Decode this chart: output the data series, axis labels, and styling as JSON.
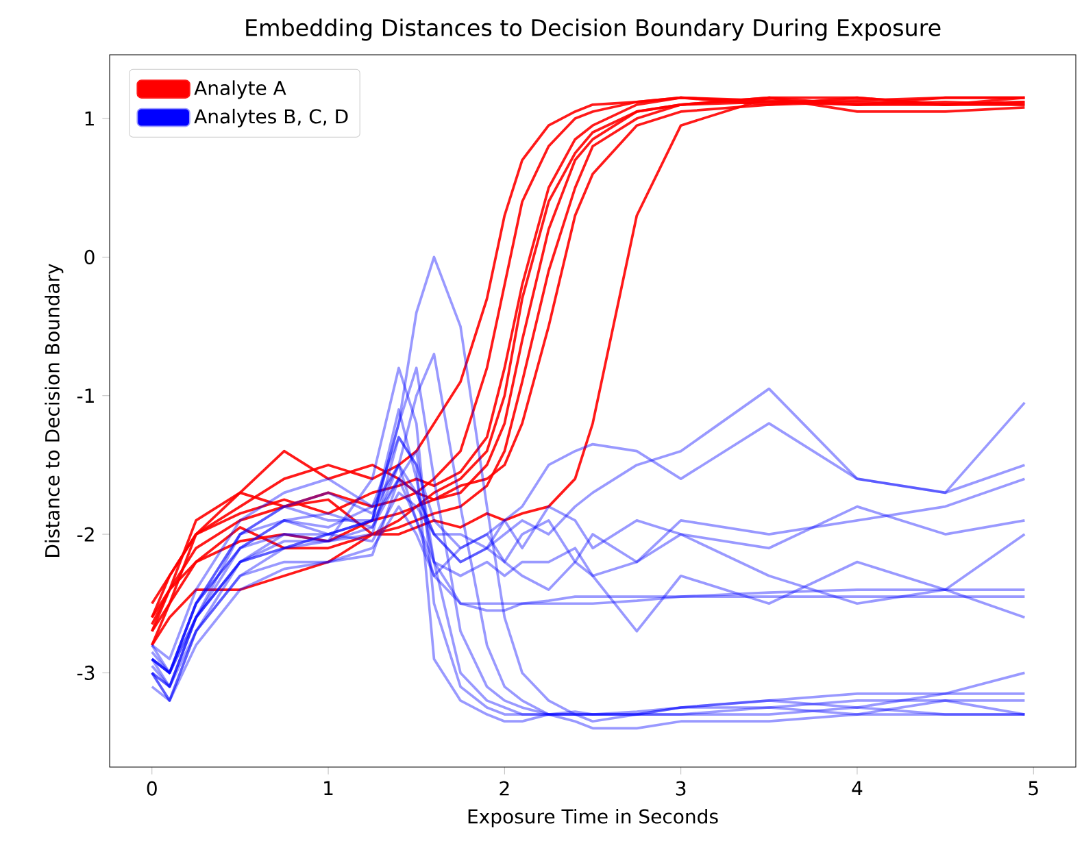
{
  "chart_data": {
    "type": "line",
    "title": "Embedding Distances to Decision Boundary During Exposure",
    "xlabel": "Exposure Time in Seconds",
    "ylabel": "Distance to Decision Boundary",
    "x": [
      0,
      0.1,
      0.25,
      0.5,
      0.75,
      1.0,
      1.25,
      1.4,
      1.5,
      1.6,
      1.75,
      1.9,
      2.0,
      2.1,
      2.25,
      2.4,
      2.5,
      2.75,
      3.0,
      3.5,
      4.0,
      4.5,
      4.95
    ],
    "xlim": [
      -0.24,
      5.24
    ],
    "ylim": [
      -3.68,
      1.46
    ],
    "xticks": [
      0,
      1,
      2,
      3,
      4,
      5
    ],
    "yticks": [
      -3,
      -2,
      -1,
      0,
      1
    ],
    "legend": "top left",
    "grid": false,
    "marker": "none",
    "line_style": "solid",
    "series": [
      {
        "name": "Analyte A",
        "color": "#ff0000",
        "values": [
          -2.6,
          -2.3,
          -2.0,
          -1.8,
          -1.6,
          -1.5,
          -1.6,
          -1.5,
          -1.4,
          -1.2,
          -0.9,
          -0.3,
          0.3,
          0.7,
          0.95,
          1.05,
          1.1,
          1.12,
          1.15,
          1.12,
          1.1,
          1.12,
          1.1
        ]
      },
      {
        "color": "#ff0000",
        "values": [
          -2.7,
          -2.4,
          -2.1,
          -1.9,
          -1.8,
          -1.7,
          -1.8,
          -1.75,
          -1.7,
          -1.6,
          -1.4,
          -0.8,
          -0.2,
          0.4,
          0.8,
          1.0,
          1.05,
          1.12,
          1.15,
          1.13,
          1.1,
          1.15,
          1.15
        ]
      },
      {
        "color": "#ff0000",
        "values": [
          -2.8,
          -2.5,
          -2.0,
          -1.85,
          -1.75,
          -1.85,
          -1.7,
          -1.65,
          -1.6,
          -1.65,
          -1.55,
          -1.3,
          -0.8,
          -0.2,
          0.5,
          0.85,
          0.95,
          1.1,
          1.15,
          1.1,
          1.12,
          1.1,
          1.12
        ]
      },
      {
        "color": "#ff0000",
        "values": [
          -2.6,
          -2.4,
          -2.2,
          -2.05,
          -2.0,
          -2.05,
          -1.9,
          -1.85,
          -1.8,
          -1.75,
          -1.7,
          -1.5,
          -1.2,
          -0.6,
          0.2,
          0.7,
          0.85,
          1.05,
          1.1,
          1.15,
          1.05,
          1.05,
          1.08
        ]
      },
      {
        "color": "#ff0000",
        "values": [
          -2.7,
          -2.5,
          -2.2,
          -1.95,
          -2.1,
          -2.1,
          -2.0,
          -1.95,
          -1.9,
          -1.85,
          -1.8,
          -1.65,
          -1.4,
          -0.9,
          -0.1,
          0.5,
          0.8,
          1.0,
          1.1,
          1.12,
          1.13,
          1.15,
          1.15
        ]
      },
      {
        "color": "#ff0000",
        "values": [
          -2.5,
          -2.3,
          -2.0,
          -1.7,
          -1.4,
          -1.6,
          -1.5,
          -1.6,
          -1.7,
          -1.75,
          -1.65,
          -1.6,
          -1.5,
          -1.2,
          -0.5,
          0.3,
          0.6,
          0.95,
          1.05,
          1.1,
          1.15,
          1.1,
          1.12
        ]
      },
      {
        "color": "#ff0000",
        "values": [
          -2.8,
          -2.6,
          -2.4,
          -2.4,
          -2.3,
          -2.2,
          -2.0,
          -2.0,
          -1.95,
          -1.9,
          -1.95,
          -1.85,
          -1.9,
          -1.85,
          -1.8,
          -1.6,
          -1.2,
          0.3,
          0.95,
          1.15,
          1.15,
          1.1,
          1.15
        ]
      },
      {
        "color": "#ff0000",
        "values": [
          -2.65,
          -2.4,
          -1.9,
          -1.7,
          -1.8,
          -1.75,
          -2.0,
          -1.9,
          -1.8,
          -1.7,
          -1.6,
          -1.4,
          -1.0,
          -0.3,
          0.4,
          0.75,
          0.9,
          1.05,
          1.1,
          1.15,
          1.1,
          1.1,
          1.1
        ]
      },
      {
        "name": "Analytes B, C, D",
        "color": "#0000ff",
        "values": [
          -2.9,
          -3.1,
          -2.6,
          -2.2,
          -2.0,
          -2.05,
          -1.6,
          -0.8,
          -1.2,
          -2.5,
          -3.1,
          -3.25,
          -3.3,
          -3.3,
          -3.3,
          -3.3,
          -3.3,
          -3.28,
          -3.25,
          -3.25,
          -3.2,
          -3.2,
          -3.2
        ]
      },
      {
        "color": "#0000ff",
        "values": [
          -3.0,
          -3.2,
          -2.7,
          -2.3,
          -2.1,
          -2.0,
          -1.9,
          -1.2,
          -0.8,
          -1.6,
          -2.7,
          -3.1,
          -3.2,
          -3.25,
          -3.3,
          -3.28,
          -3.3,
          -3.3,
          -3.25,
          -3.2,
          -3.25,
          -3.15,
          -3.15
        ]
      },
      {
        "color": "#0000ff",
        "values": [
          -2.8,
          -3.0,
          -2.5,
          -2.1,
          -1.9,
          -1.95,
          -1.8,
          -1.5,
          -1.0,
          -0.7,
          -1.8,
          -2.8,
          -3.1,
          -3.2,
          -3.3,
          -3.3,
          -3.3,
          -3.3,
          -3.3,
          -3.3,
          -3.25,
          -3.3,
          -3.3
        ]
      },
      {
        "color": "#0000ff",
        "values": [
          -2.95,
          -3.1,
          -2.6,
          -2.2,
          -2.1,
          -2.05,
          -2.0,
          -1.3,
          -1.5,
          -2.9,
          -3.2,
          -3.3,
          -3.35,
          -3.35,
          -3.3,
          -3.3,
          -3.35,
          -3.3,
          -3.3,
          -3.25,
          -3.3,
          -3.2,
          -3.3
        ]
      },
      {
        "color": "#0000ff",
        "values": [
          -2.9,
          -3.0,
          -2.5,
          -2.0,
          -1.8,
          -1.9,
          -1.9,
          -1.2,
          -0.4,
          0.0,
          -0.5,
          -1.8,
          -2.6,
          -3.0,
          -3.2,
          -3.3,
          -3.3,
          -3.3,
          -3.25,
          -3.2,
          -3.15,
          -3.15,
          -3.0
        ]
      },
      {
        "color": "#0000ff",
        "values": [
          -3.1,
          -3.2,
          -2.8,
          -2.4,
          -2.25,
          -2.2,
          -2.15,
          -1.6,
          -1.4,
          -2.2,
          -3.0,
          -3.2,
          -3.25,
          -3.3,
          -3.3,
          -3.35,
          -3.4,
          -3.4,
          -3.35,
          -3.35,
          -3.3,
          -3.3,
          -3.3
        ]
      },
      {
        "color": "#0000ff",
        "values": [
          -2.9,
          -3.0,
          -2.6,
          -2.1,
          -1.9,
          -2.0,
          -1.9,
          -1.1,
          -1.6,
          -2.2,
          -2.5,
          -2.5,
          -2.5,
          -2.5,
          -2.48,
          -2.45,
          -2.45,
          -2.45,
          -2.45,
          -2.45,
          -2.45,
          -2.45,
          -2.45
        ]
      },
      {
        "color": "#0000ff",
        "values": [
          -3.0,
          -3.1,
          -2.7,
          -2.2,
          -2.05,
          -2.05,
          -1.95,
          -1.5,
          -1.9,
          -2.3,
          -2.5,
          -2.55,
          -2.55,
          -2.5,
          -2.5,
          -2.5,
          -2.5,
          -2.48,
          -2.45,
          -2.42,
          -2.4,
          -2.4,
          -2.4
        ]
      },
      {
        "color": "#0000ff",
        "values": [
          -2.8,
          -2.9,
          -2.4,
          -1.9,
          -1.7,
          -1.6,
          -1.8,
          -1.3,
          -1.5,
          -1.9,
          -2.1,
          -2.0,
          -1.9,
          -1.8,
          -1.5,
          -1.4,
          -1.35,
          -1.4,
          -1.6,
          -1.2,
          -1.6,
          -1.7,
          -1.05
        ]
      },
      {
        "color": "#0000ff",
        "values": [
          -2.9,
          -3.0,
          -2.5,
          -2.0,
          -1.9,
          -1.85,
          -1.95,
          -1.6,
          -1.7,
          -2.0,
          -2.2,
          -2.1,
          -2.0,
          -1.9,
          -2.0,
          -1.8,
          -1.7,
          -1.5,
          -1.4,
          -0.95,
          -1.6,
          -1.7,
          -1.5
        ]
      },
      {
        "color": "#0000ff",
        "values": [
          -3.0,
          -3.1,
          -2.6,
          -2.2,
          -2.1,
          -2.0,
          -2.05,
          -1.7,
          -1.8,
          -2.0,
          -2.0,
          -2.1,
          -2.2,
          -2.0,
          -1.9,
          -2.2,
          -2.0,
          -2.2,
          -1.9,
          -2.0,
          -1.9,
          -1.8,
          -1.6
        ]
      },
      {
        "color": "#0000ff",
        "values": [
          -2.85,
          -3.0,
          -2.5,
          -2.1,
          -2.0,
          -2.0,
          -1.9,
          -1.6,
          -1.9,
          -2.2,
          -2.3,
          -2.2,
          -2.3,
          -2.2,
          -2.2,
          -2.1,
          -2.3,
          -2.7,
          -2.3,
          -2.5,
          -2.2,
          -2.4,
          -2.0
        ]
      },
      {
        "color": "#0000ff",
        "values": [
          -3.0,
          -3.2,
          -2.7,
          -2.3,
          -2.2,
          -2.2,
          -2.1,
          -1.8,
          -2.0,
          -2.3,
          -2.1,
          -2.0,
          -2.2,
          -2.3,
          -2.4,
          -2.2,
          -2.3,
          -2.2,
          -2.0,
          -2.3,
          -2.5,
          -2.4,
          -2.6
        ]
      },
      {
        "color": "#0000ff",
        "values": [
          -2.9,
          -3.0,
          -2.6,
          -2.0,
          -1.8,
          -1.7,
          -1.85,
          -1.5,
          -1.7,
          -2.0,
          -2.2,
          -2.1,
          -1.9,
          -2.1,
          -1.8,
          -1.9,
          -2.1,
          -1.9,
          -2.0,
          -2.1,
          -1.8,
          -2.0,
          -1.9
        ]
      }
    ]
  }
}
